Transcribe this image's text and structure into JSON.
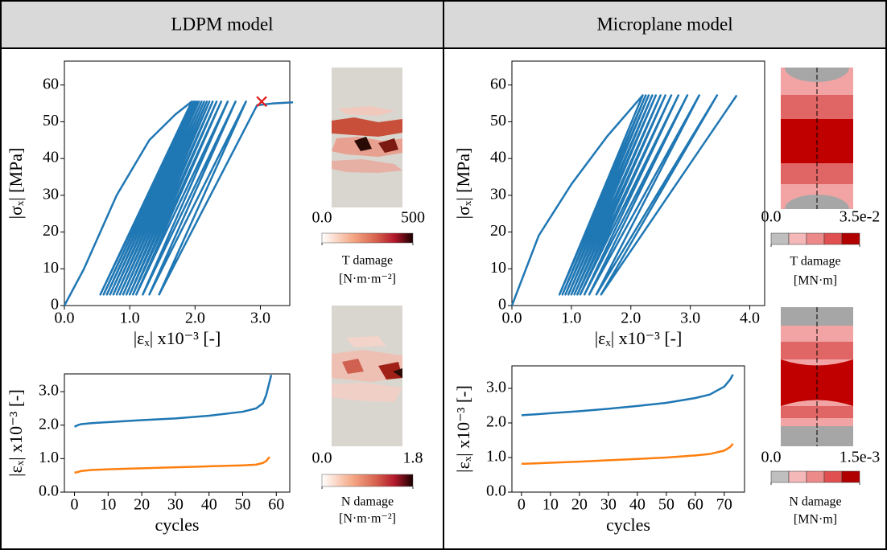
{
  "headers": [
    "LDPM model",
    "Microplane model"
  ],
  "chart_data": [
    {
      "type": "line",
      "xlabel": "|εₓ| x10⁻³ [-]",
      "ylabel": "|σₓ| [MPa]",
      "x": [
        0,
        0.3,
        0.8,
        1.3,
        1.7,
        1.95,
        0.55,
        1.98,
        0.6,
        2.0,
        0.65,
        2.03,
        0.7,
        2.06,
        0.75,
        2.1,
        0.8,
        2.14,
        0.85,
        2.18,
        0.9,
        2.22,
        0.95,
        2.27,
        1.0,
        2.33,
        1.05,
        2.4,
        1.1,
        2.5,
        1.2,
        2.62,
        1.3,
        2.78,
        1.45,
        2.95,
        3.2,
        3.5
      ],
      "series": [
        {
          "color": "#1f77b4",
          "values": [
            0,
            10,
            30,
            45,
            52,
            55.5,
            3,
            55.5,
            3,
            55.5,
            3,
            55.5,
            3,
            55.5,
            3,
            55.5,
            3,
            55.5,
            3,
            55.5,
            3,
            55.5,
            3,
            55.5,
            3,
            55.5,
            3,
            55.5,
            3,
            55.5,
            3,
            55.5,
            3,
            55.5,
            3,
            54.5,
            55,
            55.3
          ]
        },
        {
          "color": "#e31a1c",
          "marker": "x",
          "x": [
            3.02
          ],
          "values": [
            55.5
          ]
        }
      ],
      "xlim": [
        0,
        3.45
      ],
      "ylim": [
        0,
        66.5
      ],
      "xticks": [
        {
          "value": 0,
          "label": "0.0"
        },
        {
          "value": 1,
          "label": "1.0"
        },
        {
          "value": 2,
          "label": "2.0"
        },
        {
          "value": 3,
          "label": "3.0"
        }
      ],
      "yticks": [
        0,
        10,
        20,
        30,
        40,
        50,
        60
      ]
    },
    {
      "type": "line",
      "xlabel": "cycles",
      "ylabel": "|εₓ| x10⁻³ [-]",
      "x": [
        0,
        1,
        2,
        5,
        10,
        20,
        30,
        40,
        50,
        54,
        56,
        57,
        58,
        58.5
      ],
      "series": [
        {
          "color": "#1f77b4",
          "values": [
            1.95,
            2.0,
            2.03,
            2.06,
            2.09,
            2.15,
            2.2,
            2.28,
            2.4,
            2.5,
            2.65,
            2.9,
            3.3,
            3.5
          ]
        },
        {
          "color": "#ff7f0e",
          "values": [
            0.58,
            0.6,
            0.63,
            0.66,
            0.68,
            0.71,
            0.74,
            0.77,
            0.8,
            0.82,
            0.87,
            0.93,
            1.05,
            null
          ]
        }
      ],
      "xlim": [
        -3,
        64
      ],
      "ylim": [
        0,
        3.53
      ],
      "xticks": [
        0,
        10,
        20,
        30,
        40,
        50,
        60
      ],
      "yticks": [
        {
          "value": 0,
          "label": "0.0"
        },
        {
          "value": 1,
          "label": "1.0"
        },
        {
          "value": 2,
          "label": "2.0"
        },
        {
          "value": 3,
          "label": "3.0"
        }
      ]
    },
    {
      "type": "line",
      "xlabel": "|εₓ| x10⁻³ [-]",
      "ylabel": "|σₓ| [MPa]",
      "x": [
        0,
        0.45,
        1.0,
        1.6,
        2.2,
        0.8,
        2.25,
        0.85,
        2.3,
        0.9,
        2.36,
        0.95,
        2.42,
        1.0,
        2.5,
        1.05,
        2.58,
        1.1,
        2.68,
        1.15,
        2.8,
        1.22,
        2.95,
        1.3,
        3.15,
        1.42,
        3.45,
        1.5,
        3.78
      ],
      "series": [
        {
          "color": "#1f77b4",
          "values": [
            0,
            19,
            33,
            46,
            57.2,
            3,
            57.2,
            3,
            57.2,
            3,
            57.2,
            3,
            57.2,
            3,
            57.2,
            3,
            57.2,
            3,
            57.2,
            3,
            57.2,
            3,
            57.2,
            3,
            57.2,
            3,
            57.2,
            3,
            57.2
          ]
        }
      ],
      "xlim": [
        0,
        4.25
      ],
      "ylim": [
        0,
        66.5
      ],
      "xticks": [
        {
          "value": 0,
          "label": "0.0"
        },
        {
          "value": 1,
          "label": "1.0"
        },
        {
          "value": 2,
          "label": "2.0"
        },
        {
          "value": 3,
          "label": "3.0"
        },
        {
          "value": 4,
          "label": "4.0"
        }
      ],
      "yticks": [
        0,
        10,
        20,
        30,
        40,
        50,
        60
      ]
    },
    {
      "type": "line",
      "xlabel": "cycles",
      "ylabel": "|εₓ| x10⁻³ [-]",
      "x": [
        0,
        1,
        5,
        10,
        20,
        30,
        40,
        50,
        60,
        65,
        70,
        72,
        73
      ],
      "series": [
        {
          "color": "#1f77b4",
          "values": [
            2.22,
            2.23,
            2.25,
            2.28,
            2.34,
            2.41,
            2.49,
            2.58,
            2.72,
            2.82,
            3.05,
            3.25,
            3.4
          ]
        },
        {
          "color": "#ff7f0e",
          "values": [
            0.82,
            0.82,
            0.83,
            0.85,
            0.88,
            0.92,
            0.96,
            1.0,
            1.06,
            1.1,
            1.2,
            1.3,
            1.4
          ]
        }
      ],
      "xlim": [
        -3.3,
        77
      ],
      "ylim": [
        0,
        3.65
      ],
      "xticks": [
        0,
        10,
        20,
        30,
        40,
        50,
        60,
        70
      ],
      "yticks": [
        {
          "value": 0,
          "label": "0.0"
        },
        {
          "value": 1,
          "label": "1.0"
        },
        {
          "value": 2,
          "label": "2.0"
        },
        {
          "value": 3,
          "label": "3.0"
        }
      ]
    }
  ],
  "damage_maps": [
    {
      "label": "T damage",
      "unit": "[N·m·m⁻²]",
      "ticks": [
        {
          "value": 0,
          "label": "0.0"
        },
        500
      ]
    },
    {
      "label": "N damage",
      "unit": "[N·m·m⁻²]",
      "ticks": [
        {
          "value": 0,
          "label": "0.0"
        },
        {
          "value": 1.8,
          "label": "1.8"
        }
      ]
    },
    {
      "label": "T damage",
      "unit": "[MN·m]",
      "ticks": [
        {
          "value": 0,
          "label": "0.0"
        },
        {
          "value": 0.035,
          "label": "3.5e-2"
        }
      ]
    },
    {
      "label": "N damage",
      "unit": "[MN·m]",
      "ticks": [
        {
          "value": 0,
          "label": "0.0"
        },
        {
          "value": 0.0015,
          "label": "1.5e-3"
        }
      ]
    }
  ]
}
